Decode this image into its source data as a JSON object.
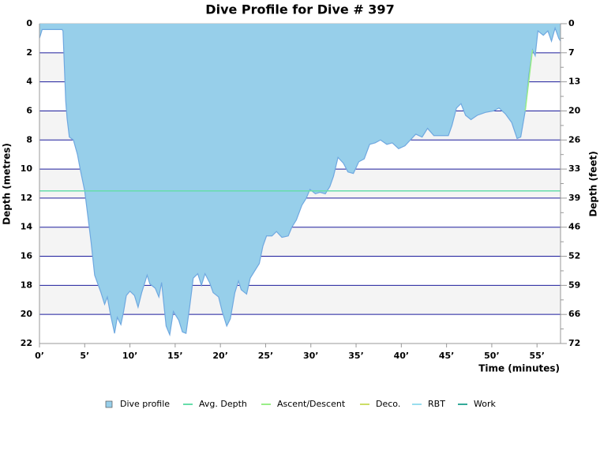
{
  "chart_data": {
    "type": "area",
    "title": "Dive Profile for Dive # 397",
    "xlabel": "Time (minutes)",
    "ylabel": "Depth (metres)",
    "y2label": "Depth (feet)",
    "y_inverted": true,
    "grid": true,
    "legend": "bottom",
    "xlim": [
      0,
      57.6
    ],
    "xticks": [
      {
        "value": 0,
        "label": "0’"
      },
      {
        "value": 5,
        "label": "5’"
      },
      {
        "value": 10,
        "label": "10’"
      },
      {
        "value": 15,
        "label": "15’"
      },
      {
        "value": 20,
        "label": "20’"
      },
      {
        "value": 25,
        "label": "25’"
      },
      {
        "value": 30,
        "label": "30’"
      },
      {
        "value": 35,
        "label": "35’"
      },
      {
        "value": 40,
        "label": "40’"
      },
      {
        "value": 45,
        "label": "45’"
      },
      {
        "value": 50,
        "label": "50’"
      },
      {
        "value": 55,
        "label": "55’"
      }
    ],
    "ylim": [
      0,
      22
    ],
    "yticks": [
      0,
      2,
      4,
      6,
      8,
      10,
      12,
      14,
      16,
      18,
      20,
      22
    ],
    "y2lim": [
      0,
      72.18
    ],
    "y2ticks": [
      0,
      {
        "value": 6.56,
        "label": "7"
      },
      {
        "value": 13.12,
        "label": "13"
      },
      {
        "value": 19.69,
        "label": "20"
      },
      {
        "value": 26.25,
        "label": "26"
      },
      {
        "value": 32.81,
        "label": "33"
      },
      {
        "value": 39.37,
        "label": "39"
      },
      {
        "value": 45.93,
        "label": "46"
      },
      {
        "value": 52.49,
        "label": "52"
      },
      {
        "value": 59.06,
        "label": "59"
      },
      {
        "value": 65.62,
        "label": "66"
      },
      {
        "value": 72.18,
        "label": "72"
      }
    ],
    "series": [
      {
        "name": "Dive profile",
        "color": "#97cfea",
        "edge_color": "#6fa8e0",
        "x": [
          0,
          0.3,
          2.5,
          2.6,
          2.9,
          3.05,
          3.3,
          3.75,
          4.2,
          4.5,
          5.0,
          5.3,
          5.7,
          6.1,
          6.8,
          7.2,
          7.5,
          7.85,
          8.3,
          8.6,
          9.0,
          9.3,
          9.6,
          10.0,
          10.5,
          10.9,
          11.3,
          11.9,
          12.2,
          12.8,
          13.2,
          13.5,
          14.0,
          14.4,
          14.8,
          15.4,
          15.8,
          16.2,
          16.6,
          17.0,
          17.5,
          17.9,
          18.3,
          18.8,
          19.2,
          19.8,
          20.2,
          20.7,
          21.1,
          21.6,
          22.0,
          22.3,
          22.9,
          23.3,
          23.8,
          24.3,
          24.7,
          25.1,
          25.7,
          26.2,
          26.8,
          27.5,
          27.9,
          28.4,
          29.0,
          29.5,
          29.9,
          30.5,
          31.0,
          31.6,
          32.1,
          32.5,
          33.0,
          33.6,
          34.1,
          34.7,
          35.3,
          35.9,
          36.5,
          37.1,
          37.7,
          38.4,
          39.0,
          39.7,
          40.4,
          41.0,
          41.6,
          42.3,
          42.9,
          43.6,
          44.5,
          45.2,
          45.6,
          46.1,
          46.6,
          47.1,
          47.7,
          48.4,
          49.3,
          50.2,
          50.8,
          51.5,
          52.2,
          52.8,
          53.2,
          53.7,
          54.1,
          54.5,
          54.8,
          55.1,
          55.7,
          56.2,
          56.6,
          57.0,
          57.4,
          57.6
        ],
        "values": [
          1.0,
          0.4,
          0.4,
          0.5,
          5.3,
          6.5,
          7.8,
          8.0,
          9.0,
          10.0,
          11.5,
          13.0,
          15.0,
          17.3,
          18.5,
          19.3,
          18.8,
          20.0,
          21.3,
          20.2,
          20.7,
          19.8,
          18.7,
          18.4,
          18.7,
          19.5,
          18.5,
          17.3,
          17.9,
          18.2,
          18.8,
          17.8,
          20.8,
          21.4,
          19.8,
          20.4,
          21.2,
          21.3,
          19.5,
          17.5,
          17.2,
          18.0,
          17.2,
          17.8,
          18.5,
          18.8,
          19.8,
          20.8,
          20.3,
          18.5,
          17.7,
          18.3,
          18.6,
          17.5,
          17.0,
          16.5,
          15.3,
          14.6,
          14.6,
          14.3,
          14.7,
          14.6,
          14.0,
          13.5,
          12.5,
          12.0,
          11.4,
          11.7,
          11.6,
          11.7,
          11.2,
          10.5,
          9.2,
          9.6,
          10.2,
          10.3,
          9.5,
          9.3,
          8.3,
          8.2,
          8.0,
          8.3,
          8.2,
          8.6,
          8.4,
          8.0,
          7.6,
          7.8,
          7.2,
          7.7,
          7.7,
          7.7,
          7.0,
          5.8,
          5.5,
          6.3,
          6.6,
          6.3,
          6.1,
          6.0,
          5.8,
          6.2,
          6.8,
          7.9,
          7.8,
          6.0,
          3.5,
          1.8,
          2.2,
          0.5,
          0.8,
          0.5,
          1.2,
          0.3,
          1.0,
          1.2
        ]
      },
      {
        "name": "Avg. Depth",
        "color": "#66ddaa",
        "values": [
          11.5
        ]
      },
      {
        "name": "Ascent/Descent",
        "color": "#99ee88",
        "x": [
          53.7,
          54.5
        ],
        "values": [
          6.0,
          1.8
        ]
      },
      {
        "name": "Deco.",
        "color": "#ccdd66"
      },
      {
        "name": "RBT",
        "color": "#99ddee"
      },
      {
        "name": "Work",
        "color": "#33aa99"
      }
    ]
  }
}
